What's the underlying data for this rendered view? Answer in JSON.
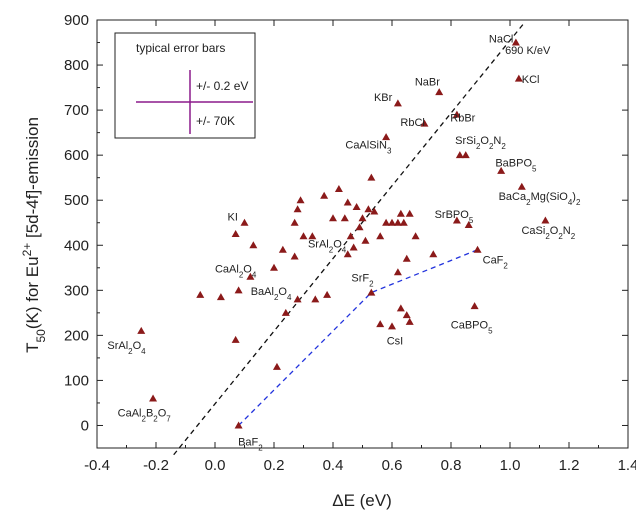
{
  "chart_data": {
    "type": "scatter",
    "xlabel": "ΔE  (eV)",
    "ylabel_pre": "T",
    "ylabel_sub": "50",
    "ylabel_mid": "(K)  for Eu",
    "ylabel_sup": "2+",
    "ylabel_post": " [5d-4f]-emission",
    "xlim": [
      -0.4,
      1.4
    ],
    "ylim": [
      -50,
      900
    ],
    "xticks": [
      -0.4,
      -0.2,
      0.0,
      0.2,
      0.4,
      0.6,
      0.8,
      1.0,
      1.2,
      1.4
    ],
    "xtick_labels": [
      "-0.4",
      "-0.2",
      "0.0",
      "0.2",
      "0.4",
      "0.6",
      "0.8",
      "1.0",
      "1.2",
      "1.4"
    ],
    "yticks": [
      0,
      100,
      200,
      300,
      400,
      500,
      600,
      700,
      800,
      900
    ],
    "ytick_labels": [
      "0",
      "100",
      "200",
      "300",
      "400",
      "500",
      "600",
      "700",
      "800",
      "900"
    ],
    "marker_color": "#8b1a1a",
    "points": [
      {
        "x": 1.02,
        "y": 850
      },
      {
        "x": 1.03,
        "y": 770
      },
      {
        "x": 0.76,
        "y": 740
      },
      {
        "x": 0.62,
        "y": 715
      },
      {
        "x": 0.71,
        "y": 670
      },
      {
        "x": 0.82,
        "y": 690
      },
      {
        "x": 0.58,
        "y": 640
      },
      {
        "x": 0.83,
        "y": 600
      },
      {
        "x": 0.85,
        "y": 600
      },
      {
        "x": 0.97,
        "y": 565
      },
      {
        "x": 1.04,
        "y": 530
      },
      {
        "x": 1.12,
        "y": 455
      },
      {
        "x": 0.82,
        "y": 455
      },
      {
        "x": 0.86,
        "y": 445
      },
      {
        "x": 0.89,
        "y": 390
      },
      {
        "x": 0.88,
        "y": 265
      },
      {
        "x": 0.53,
        "y": 295
      },
      {
        "x": 0.08,
        "y": 0
      },
      {
        "x": -0.25,
        "y": 210
      },
      {
        "x": -0.21,
        "y": 60
      },
      {
        "x": 0.02,
        "y": 285
      },
      {
        "x": 0.21,
        "y": 130
      },
      {
        "x": 0.07,
        "y": 190
      },
      {
        "x": -0.05,
        "y": 290
      },
      {
        "x": 0.08,
        "y": 300
      },
      {
        "x": 0.12,
        "y": 330
      },
      {
        "x": 0.07,
        "y": 425
      },
      {
        "x": 0.13,
        "y": 400
      },
      {
        "x": 0.1,
        "y": 450
      },
      {
        "x": 0.2,
        "y": 350
      },
      {
        "x": 0.23,
        "y": 390
      },
      {
        "x": 0.24,
        "y": 250
      },
      {
        "x": 0.27,
        "y": 450
      },
      {
        "x": 0.29,
        "y": 500
      },
      {
        "x": 0.28,
        "y": 480
      },
      {
        "x": 0.3,
        "y": 420
      },
      {
        "x": 0.27,
        "y": 375
      },
      {
        "x": 0.28,
        "y": 280
      },
      {
        "x": 0.33,
        "y": 420
      },
      {
        "x": 0.34,
        "y": 280
      },
      {
        "x": 0.38,
        "y": 290
      },
      {
        "x": 0.37,
        "y": 510
      },
      {
        "x": 0.4,
        "y": 460
      },
      {
        "x": 0.42,
        "y": 525
      },
      {
        "x": 0.45,
        "y": 495
      },
      {
        "x": 0.44,
        "y": 460
      },
      {
        "x": 0.46,
        "y": 420
      },
      {
        "x": 0.47,
        "y": 395
      },
      {
        "x": 0.48,
        "y": 485
      },
      {
        "x": 0.49,
        "y": 440
      },
      {
        "x": 0.5,
        "y": 460
      },
      {
        "x": 0.51,
        "y": 410
      },
      {
        "x": 0.52,
        "y": 480
      },
      {
        "x": 0.53,
        "y": 550
      },
      {
        "x": 0.54,
        "y": 475
      },
      {
        "x": 0.56,
        "y": 420
      },
      {
        "x": 0.58,
        "y": 450
      },
      {
        "x": 0.6,
        "y": 450
      },
      {
        "x": 0.62,
        "y": 450
      },
      {
        "x": 0.63,
        "y": 470
      },
      {
        "x": 0.64,
        "y": 450
      },
      {
        "x": 0.66,
        "y": 470
      },
      {
        "x": 0.65,
        "y": 370
      },
      {
        "x": 0.62,
        "y": 340
      },
      {
        "x": 0.68,
        "y": 420
      },
      {
        "x": 0.74,
        "y": 380
      },
      {
        "x": 0.56,
        "y": 225
      },
      {
        "x": 0.6,
        "y": 220
      },
      {
        "x": 0.63,
        "y": 260
      },
      {
        "x": 0.65,
        "y": 245
      },
      {
        "x": 0.66,
        "y": 230
      },
      {
        "x": 0.45,
        "y": 380
      }
    ],
    "dashed_black_line": {
      "points": [
        [
          -0.14,
          -65
        ],
        [
          1.05,
          895
        ]
      ]
    },
    "dashed_blue_curve": {
      "points": [
        [
          0.08,
          0
        ],
        [
          0.53,
          295
        ],
        [
          0.89,
          390
        ]
      ]
    },
    "annotations": [
      {
        "text": "NaCl",
        "x": 0.97,
        "y": 850
      },
      {
        "text": "690 K/eV",
        "x": 1.06,
        "y": 825,
        "color": "#8b1a1a"
      },
      {
        "text": "KCl",
        "x": 1.07,
        "y": 760
      },
      {
        "text": "NaBr",
        "x": 0.72,
        "y": 755
      },
      {
        "text": "KBr",
        "x": 0.57,
        "y": 720
      },
      {
        "text": "RbCl",
        "x": 0.67,
        "y": 665
      },
      {
        "text": "RbBr",
        "x": 0.84,
        "y": 675
      },
      {
        "text": "CaAlSiN",
        "sub": "3",
        "x": 0.52,
        "y": 615
      },
      {
        "text": "SrSi",
        "sub": "2",
        "mid": "O",
        "sub2": "2",
        "end": "N",
        "sub3": "2",
        "x": 0.9,
        "y": 625
      },
      {
        "text": "BaBPO",
        "sub": "5",
        "x": 1.02,
        "y": 575
      },
      {
        "text": "BaCa",
        "sub": "2",
        "mid": "Mg(SiO",
        "sub2": "4",
        "end": ")",
        "sub3": "2",
        "x": 1.1,
        "y": 500
      },
      {
        "text": "CaSi",
        "sub": "2",
        "mid": "O",
        "sub2": "2",
        "end": "N",
        "sub3": "2",
        "x": 1.13,
        "y": 425
      },
      {
        "text": "SrBPO",
        "sub": "5",
        "x": 0.81,
        "y": 460
      },
      {
        "text": "KI",
        "x": 0.06,
        "y": 455
      },
      {
        "text": "SrAl",
        "sub": "2",
        "mid": "O",
        "sub2": "4",
        "x": 0.38,
        "y": 395
      },
      {
        "text": "CaF",
        "sub": "2",
        "x": 0.95,
        "y": 360
      },
      {
        "text": "CaAl",
        "sub": "2",
        "mid": "O",
        "sub2": "4",
        "x": 0.07,
        "y": 340
      },
      {
        "text": "SrF",
        "sub": "2",
        "x": 0.5,
        "y": 320
      },
      {
        "text": "BaAl",
        "sub": "2",
        "mid": "O",
        "sub2": "4",
        "x": 0.19,
        "y": 290
      },
      {
        "text": "CaBPO",
        "sub": "5",
        "x": 0.87,
        "y": 215
      },
      {
        "text": "CsI",
        "x": 0.61,
        "y": 180
      },
      {
        "text": "SrAl",
        "sub": "2",
        "mid": "O",
        "sub2": "4",
        "x": -0.3,
        "y": 170
      },
      {
        "text": "CaAl",
        "sub": "2",
        "mid": "B",
        "sub2": "2",
        "end": "O",
        "sub3": "7",
        "x": -0.24,
        "y": 20
      },
      {
        "text": "BaF",
        "sub": "2",
        "x": 0.12,
        "y": -45
      }
    ],
    "legend": {
      "title": "typical error bars",
      "x_error_label": "+/- 0.2 eV",
      "y_error_label": "+/- 70K",
      "color": "#8b1a8b",
      "placement": "top-left"
    }
  }
}
